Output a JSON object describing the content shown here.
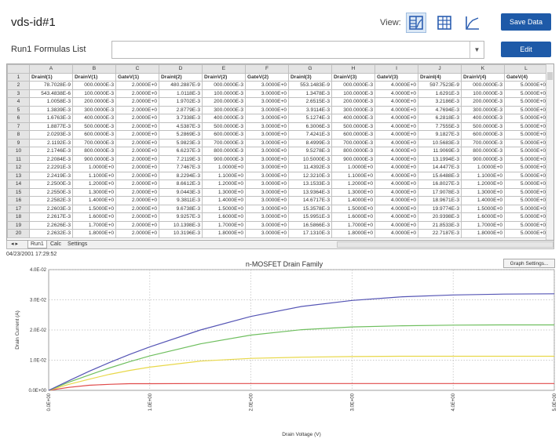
{
  "header": {
    "title": "vds-id#1",
    "view_label": "View:",
    "save_label": "Save Data",
    "edit_label": "Edit",
    "formulas_label": "Run1 Formulas List",
    "formulas_value": ""
  },
  "grid": {
    "columns": [
      "A",
      "B",
      "C",
      "D",
      "E",
      "F",
      "G",
      "H",
      "I",
      "J",
      "K",
      "L"
    ],
    "headers": [
      "DrainI(1)",
      "DrainV(1)",
      "GateV(1)",
      "DrainI(2)",
      "DrainV(2)",
      "GateV(2)",
      "DrainI(3)",
      "DrainV(3)",
      "GateV(3)",
      "DrainI(4)",
      "DrainV(4)",
      "GateV(4)"
    ],
    "rows": [
      [
        "78.7028E-9",
        "000.0000E-3",
        "2.0000E+0",
        "480.2887E-9",
        "000.0000E-3",
        "3.0000E+0",
        "553.1483E-9",
        "000.0000E-3",
        "4.0000E+0",
        "597.7523E-9",
        "000.0000E-3",
        "5.0000E+0"
      ],
      [
        "543.4838E-6",
        "100.0000E-3",
        "2.0000E+0",
        "1.0118E-3",
        "100.0000E-3",
        "3.0000E+0",
        "1.3478E-3",
        "100.0000E-3",
        "4.0000E+0",
        "1.6291E-3",
        "100.0000E-3",
        "5.0000E+0"
      ],
      [
        "1.0058E-3",
        "200.0000E-3",
        "2.0000E+0",
        "1.9702E-3",
        "200.0000E-3",
        "3.0000E+0",
        "2.6515E-3",
        "200.0000E-3",
        "4.0000E+0",
        "3.2186E-3",
        "200.0000E-3",
        "5.0000E+0"
      ],
      [
        "1.3839E-3",
        "300.0000E-3",
        "2.0000E+0",
        "2.8779E-3",
        "300.0000E-3",
        "3.0000E+0",
        "3.9114E-3",
        "300.0000E-3",
        "4.0000E+0",
        "4.7694E-3",
        "300.0000E-3",
        "5.0000E+0"
      ],
      [
        "1.6763E-3",
        "400.0000E-3",
        "2.0000E+0",
        "3.7338E-3",
        "400.0000E-3",
        "3.0000E+0",
        "5.1274E-3",
        "400.0000E-3",
        "4.0000E+0",
        "6.2818E-3",
        "400.0000E-3",
        "5.0000E+0"
      ],
      [
        "1.8877E-3",
        "500.0000E-3",
        "2.0000E+0",
        "4.5387E-3",
        "500.0000E-3",
        "3.0000E+0",
        "6.3006E-3",
        "500.0000E-3",
        "4.0000E+0",
        "7.7555E-3",
        "500.0000E-3",
        "5.0000E+0"
      ],
      [
        "2.0293E-3",
        "600.0000E-3",
        "2.0000E+0",
        "5.2869E-3",
        "600.0000E-3",
        "3.0000E+0",
        "7.4241E-3",
        "600.0000E-3",
        "4.0000E+0",
        "9.1827E-3",
        "600.0000E-3",
        "5.0000E+0"
      ],
      [
        "2.1192E-3",
        "700.0000E-3",
        "2.0000E+0",
        "5.9823E-3",
        "700.0000E-3",
        "3.0000E+0",
        "8.4999E-3",
        "700.0000E-3",
        "4.0000E+0",
        "10.5683E-3",
        "700.0000E-3",
        "5.0000E+0"
      ],
      [
        "2.1746E-3",
        "800.0000E-3",
        "2.0000E+0",
        "6.6237E-3",
        "800.0000E-3",
        "3.0000E+0",
        "9.5278E-3",
        "800.0000E-3",
        "4.0000E+0",
        "11.9069E-3",
        "800.0000E-3",
        "5.0000E+0"
      ],
      [
        "2.2084E-3",
        "900.0000E-3",
        "2.0000E+0",
        "7.2119E-3",
        "900.0000E-3",
        "3.0000E+0",
        "10.5000E-3",
        "900.0000E-3",
        "4.0000E+0",
        "13.1994E-3",
        "900.0000E-3",
        "5.0000E+0"
      ],
      [
        "2.2291E-3",
        "1.0000E+0",
        "2.0000E+0",
        "7.7467E-3",
        "1.0000E+0",
        "3.0000E+0",
        "11.4392E-3",
        "1.0000E+0",
        "4.0000E+0",
        "14.4477E-3",
        "1.0000E+0",
        "5.0000E+0"
      ],
      [
        "2.2419E-3",
        "1.1000E+0",
        "2.0000E+0",
        "8.2294E-3",
        "1.1000E+0",
        "3.0000E+0",
        "12.3210E-3",
        "1.1000E+0",
        "4.0000E+0",
        "15.6488E-3",
        "1.1000E+0",
        "5.0000E+0"
      ],
      [
        "2.2500E-3",
        "1.2000E+0",
        "2.0000E+0",
        "8.6612E-3",
        "1.2000E+0",
        "3.0000E+0",
        "13.1533E-3",
        "1.2000E+0",
        "4.0000E+0",
        "16.8027E-3",
        "1.2000E+0",
        "5.0000E+0"
      ],
      [
        "2.2550E-3",
        "1.3000E+0",
        "2.0000E+0",
        "9.0443E-3",
        "1.3000E+0",
        "3.0000E+0",
        "13.9364E-3",
        "1.3000E+0",
        "4.0000E+0",
        "17.9078E-3",
        "1.3000E+0",
        "5.0000E+0"
      ],
      [
        "2.2582E-3",
        "1.4000E+0",
        "2.0000E+0",
        "9.3811E-3",
        "1.4000E+0",
        "3.0000E+0",
        "14.6717E-3",
        "1.4000E+0",
        "4.0000E+0",
        "18.9671E-3",
        "1.4000E+0",
        "5.0000E+0"
      ],
      [
        "2.2603E-3",
        "1.5000E+0",
        "2.0000E+0",
        "9.6738E-3",
        "1.5000E+0",
        "3.0000E+0",
        "15.3578E-3",
        "1.5000E+0",
        "4.0000E+0",
        "19.9774E-3",
        "1.5000E+0",
        "5.0000E+0"
      ],
      [
        "2.2617E-3",
        "1.6000E+0",
        "2.0000E+0",
        "9.9257E-3",
        "1.6000E+0",
        "3.0000E+0",
        "15.9951E-3",
        "1.6000E+0",
        "4.0000E+0",
        "20.9398E-3",
        "1.6000E+0",
        "5.0000E+0"
      ],
      [
        "2.2626E-3",
        "1.7000E+0",
        "2.0000E+0",
        "10.1398E-3",
        "1.7000E+0",
        "3.0000E+0",
        "16.5866E-3",
        "1.7000E+0",
        "4.0000E+0",
        "21.8533E-3",
        "1.7000E+0",
        "5.0000E+0"
      ],
      [
        "2.2632E-3",
        "1.8000E+0",
        "2.0000E+0",
        "10.3196E-3",
        "1.8000E+0",
        "3.0000E+0",
        "17.1310E-3",
        "1.8000E+0",
        "4.0000E+0",
        "22.7187E-3",
        "1.8000E+0",
        "5.0000E+0"
      ]
    ],
    "tabs": [
      "Run1",
      "Calc",
      "Settings"
    ]
  },
  "status": {
    "timestamp": "04/23/2001 17:29:52",
    "graph_settings_label": "Graph Settings..."
  },
  "chart_data": {
    "type": "line",
    "title": "n-MOSFET Drain Family",
    "xlabel": "Drain Voltage (V)",
    "ylabel": "Drain Current (A)",
    "xlim": [
      0,
      5
    ],
    "ylim": [
      0,
      0.04
    ],
    "x_ticks": [
      "0.0E+00",
      "1.0E+00",
      "2.0E+00",
      "3.0E+00",
      "4.0E+00",
      "5.0E+00"
    ],
    "y_ticks": [
      "0.0E+00",
      "1.0E-02",
      "2.0E-02",
      "3.0E-02",
      "4.0E-02"
    ],
    "grid": true,
    "series": [
      {
        "color": "#e04b4b",
        "x": [
          0,
          0.2,
          0.4,
          0.6,
          0.8,
          1.0,
          1.5,
          2.0,
          3.0,
          4.0,
          5.0
        ],
        "y": [
          0,
          0.001,
          0.0017,
          0.002,
          0.0022,
          0.0022,
          0.00226,
          0.00227,
          0.00227,
          0.00227,
          0.00227
        ]
      },
      {
        "color": "#e8d84a",
        "x": [
          0,
          0.2,
          0.4,
          0.6,
          0.8,
          1.0,
          1.5,
          2.0,
          2.5,
          3.0,
          3.5,
          4.0,
          5.0
        ],
        "y": [
          0,
          0.002,
          0.0037,
          0.0053,
          0.0066,
          0.0077,
          0.0097,
          0.0106,
          0.011,
          0.0112,
          0.0113,
          0.0113,
          0.0113
        ]
      },
      {
        "color": "#6fbf5f",
        "x": [
          0,
          0.2,
          0.4,
          0.6,
          0.8,
          1.0,
          1.5,
          2.0,
          2.5,
          3.0,
          3.5,
          4.0,
          4.5,
          5.0
        ],
        "y": [
          0,
          0.0027,
          0.0051,
          0.0074,
          0.0095,
          0.0114,
          0.0154,
          0.0183,
          0.0201,
          0.021,
          0.0214,
          0.0216,
          0.0217,
          0.0217
        ]
      },
      {
        "color": "#5555b5",
        "x": [
          0,
          0.2,
          0.4,
          0.6,
          0.8,
          1.0,
          1.5,
          2.0,
          2.5,
          3.0,
          3.5,
          4.0,
          4.5,
          5.0
        ],
        "y": [
          0,
          0.0032,
          0.0063,
          0.0092,
          0.0119,
          0.0144,
          0.02,
          0.0245,
          0.0278,
          0.0298,
          0.031,
          0.0316,
          0.0319,
          0.032
        ]
      }
    ]
  }
}
